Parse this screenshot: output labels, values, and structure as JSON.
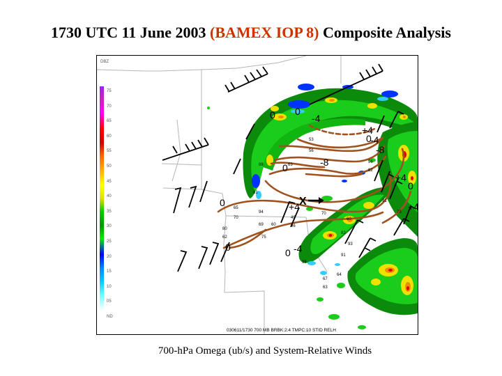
{
  "header": {
    "title_prefix": "1730 UTC 11 June 2003",
    "title_highlight": "(BAMEX IOP 8)",
    "title_suffix": "Composite Analysis"
  },
  "caption": "700-hPa Omega (ub/s) and System-Relative Winds",
  "legend": {
    "unit": "DBZ",
    "ticks": [
      "75",
      "70",
      "65",
      "60",
      "55",
      "50",
      "45",
      "40",
      "35",
      "30",
      "25",
      "20",
      "15",
      "10",
      "05",
      "ND"
    ]
  },
  "map": {
    "footer_text": "030611/1730 700 MB BRBK:2:4 TMPC:10 STID RELH",
    "contour_labels": [
      "0",
      "0",
      "-4",
      "+4",
      "0",
      "-8",
      "0",
      "-4",
      "-8",
      "0",
      "+4",
      "0",
      "0",
      "-4",
      "+4",
      "+4",
      "0"
    ],
    "station_values": [
      "53",
      "56",
      "88",
      "63",
      "56",
      "82",
      "81",
      "94",
      "65",
      "70",
      "80",
      "62",
      "91",
      "69",
      "60",
      "75",
      "49",
      "96",
      "70",
      "60",
      "82",
      "93",
      "91",
      "98",
      "64",
      "67",
      "63",
      "73"
    ],
    "marker": "X"
  },
  "colors": {
    "title_accent": "#cc3300",
    "contour": "#a0521e"
  }
}
